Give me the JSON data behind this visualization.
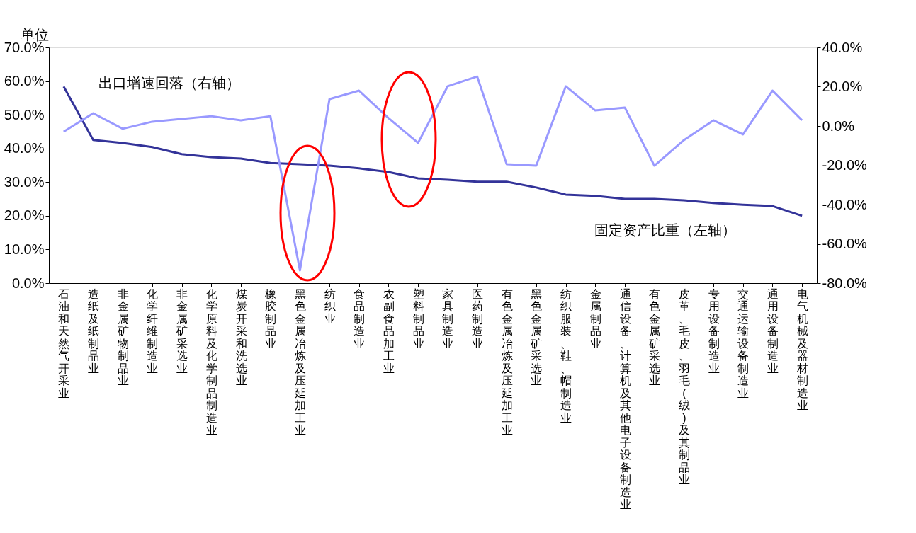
{
  "chart_data": {
    "type": "line",
    "categories": [
      "石油和天然气开采业",
      "造纸及纸制品业",
      "非金属矿物制品业",
      "化学纤维制造业",
      "非金属矿采选业",
      "化学原料及化学制品制造业",
      "煤炭开采和洗选业",
      "橡胶制品业",
      "黑色金属冶炼及压延加工业",
      "纺织业",
      "食品制造业",
      "农副食品加工业",
      "塑料制品业",
      "家具制造业",
      "医药制造业",
      "有色金属冶炼及压延加工业",
      "黑色金属矿采选业",
      "纺织服装、鞋、帽制造业",
      "金属制品业",
      "通信设备、计算机及其他电子设备制造业",
      "有色金属矿采选业",
      "皮革、毛皮、羽毛(绒)及其制品业",
      "专用设备制造业",
      "交通运输设备制造业",
      "通用设备制造业",
      "电气机械及器材制造业"
    ],
    "series": [
      {
        "name": "固定资产比重（左轴）",
        "color": "#333399",
        "values": [
          58.4,
          42.5,
          41.6,
          40.4,
          38.3,
          37.4,
          37.0,
          35.7,
          35.3,
          34.9,
          34.1,
          33.0,
          31.1,
          30.7,
          30.1,
          30.1,
          28.4,
          26.3,
          25.9,
          25.0,
          25.0,
          24.6,
          23.8,
          23.3,
          22.9,
          20.0
        ]
      },
      {
        "name": "出口增速回落（右轴）",
        "color": "#9999ff",
        "axis": "y2",
        "values": [
          -2.9,
          6.5,
          -1.4,
          2.2,
          3.6,
          5.0,
          2.9,
          5.0,
          -73.5,
          13.7,
          18.0,
          4.0,
          -8.6,
          20.2,
          25.2,
          -19.5,
          -20.2,
          20.2,
          7.9,
          9.4,
          -20.2,
          -7.2,
          2.9,
          -4.3,
          18.0,
          2.9
        ]
      }
    ],
    "ylim": [
      0,
      70
    ],
    "yticks": [
      {
        "value": 0,
        "label": "0.0%"
      },
      {
        "value": 10,
        "label": "10.0%"
      },
      {
        "value": 20,
        "label": "20.0%"
      },
      {
        "value": 30,
        "label": "30.0%"
      },
      {
        "value": 40,
        "label": "40.0%"
      },
      {
        "value": 50,
        "label": "50.0%"
      },
      {
        "value": 60,
        "label": "60.0%"
      },
      {
        "value": 70,
        "label": "70.0%"
      }
    ],
    "y2lim": [
      -80,
      40
    ],
    "y2ticks": [
      {
        "value": -80,
        "label": "-80.0%"
      },
      {
        "value": -60,
        "label": "-60.0%"
      },
      {
        "value": -40,
        "label": "-40.0%"
      },
      {
        "value": -20,
        "label": "-20.0%"
      },
      {
        "value": 0,
        "label": "0.0%"
      },
      {
        "value": 20,
        "label": "20.0%"
      },
      {
        "value": 40,
        "label": "40.0%"
      }
    ],
    "annotations": [
      "单位"
    ],
    "grid": false
  }
}
